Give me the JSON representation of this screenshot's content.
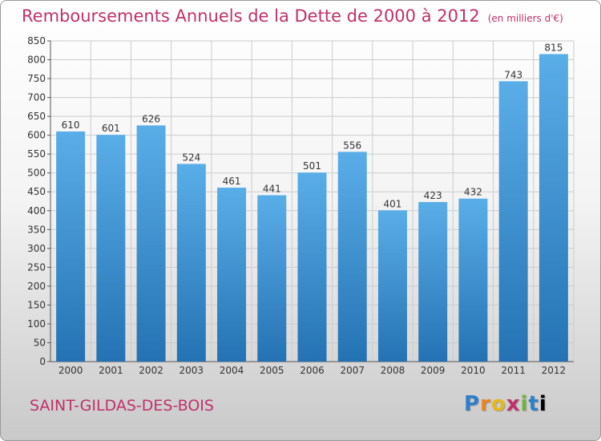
{
  "header": {
    "title": "Remboursements Annuels de la Dette de 2000 à 2012",
    "unit": "(en milliers d'€)"
  },
  "footer": {
    "commune": "SAINT-GILDAS-DES-BOIS",
    "logo_text": "Proxiti"
  },
  "colors": {
    "title": "#c0306a",
    "bar_top": "#5aaee8",
    "bar_bottom": "#2472b3",
    "grid": "#cccccc"
  },
  "chart_data": {
    "type": "bar",
    "title": "Remboursements Annuels de la Dette de 2000 à 2012",
    "xlabel": "",
    "ylabel": "",
    "categories": [
      "2000",
      "2001",
      "2002",
      "2003",
      "2004",
      "2005",
      "2006",
      "2007",
      "2008",
      "2009",
      "2010",
      "2011",
      "2012"
    ],
    "values": [
      610,
      601,
      626,
      524,
      461,
      441,
      501,
      556,
      401,
      423,
      432,
      743,
      815
    ],
    "ylim": [
      0,
      850
    ],
    "yticks": [
      0,
      50,
      100,
      150,
      200,
      250,
      300,
      350,
      400,
      450,
      500,
      550,
      600,
      650,
      700,
      750,
      800,
      850
    ],
    "grid": true,
    "data_labels": true
  }
}
